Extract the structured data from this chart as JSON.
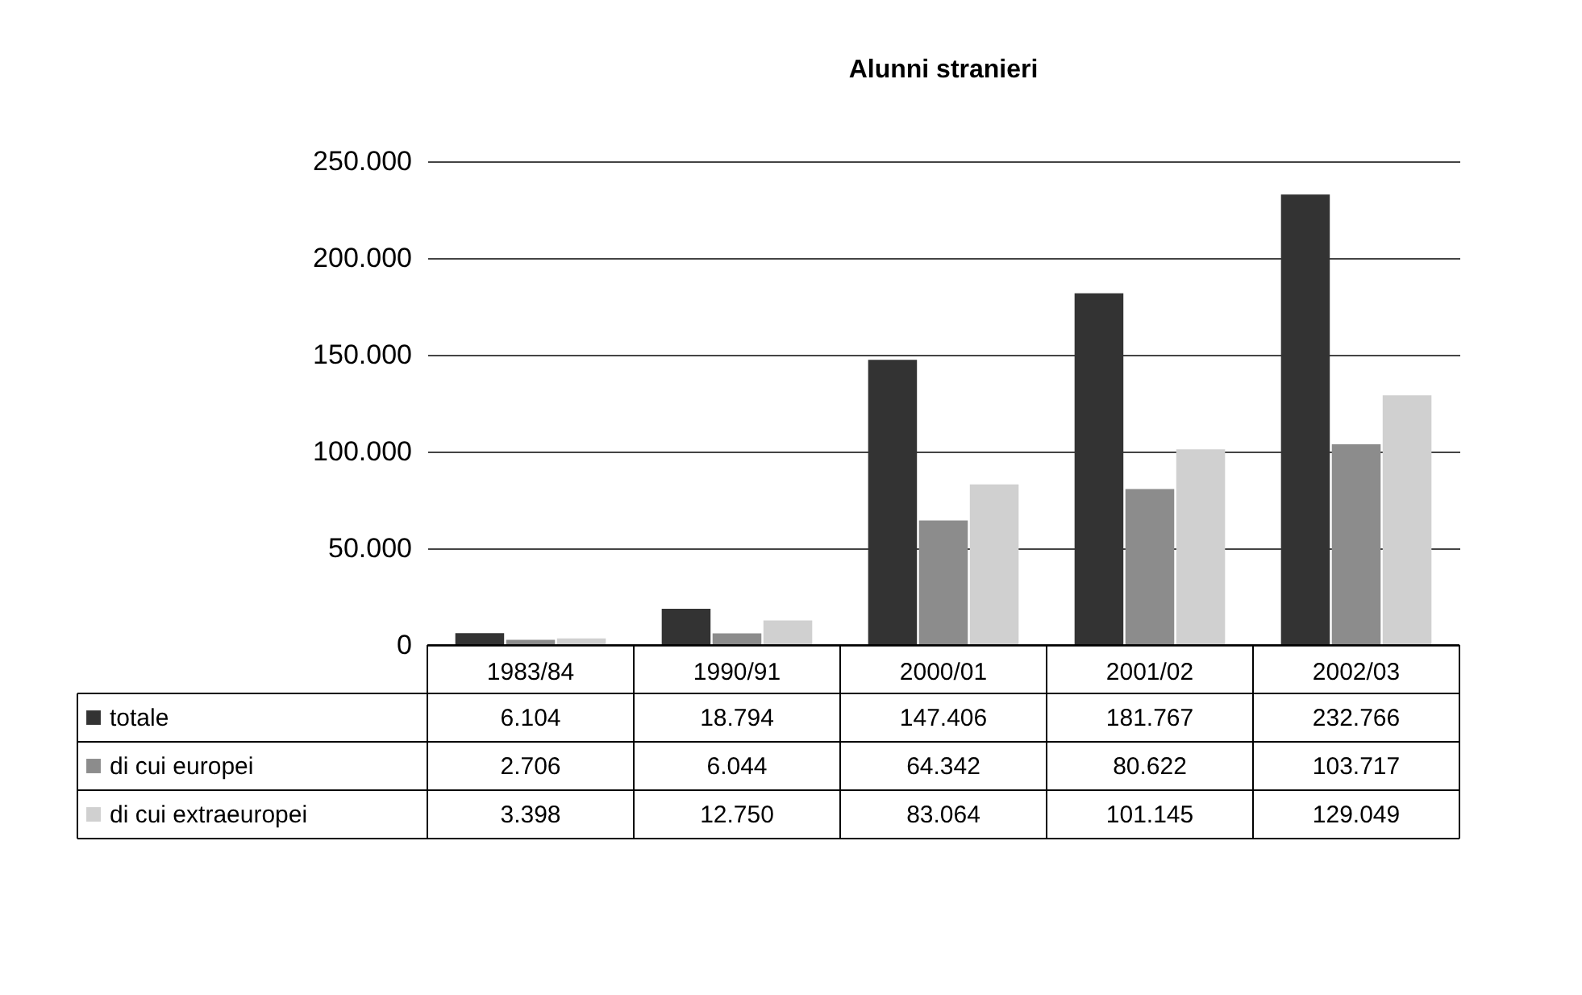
{
  "chart_data": {
    "type": "bar",
    "title": "Alunni stranieri",
    "categories": [
      "1983/84",
      "1990/91",
      "2000/01",
      "2001/02",
      "2002/03"
    ],
    "series": [
      {
        "name": "totale",
        "color": "#333333",
        "values": [
          6104,
          18794,
          147406,
          181767,
          232766
        ],
        "value_labels": [
          "6.104",
          "18.794",
          "147.406",
          "181.767",
          "232.766"
        ]
      },
      {
        "name": "di cui europei",
        "color": "#8c8c8c",
        "values": [
          2706,
          6044,
          64342,
          80622,
          103717
        ],
        "value_labels": [
          "2.706",
          "6.044",
          "64.342",
          "80.622",
          "103.717"
        ]
      },
      {
        "name": "di cui extraeuropei",
        "color": "#d0d0d0",
        "values": [
          3398,
          12750,
          83064,
          101145,
          129049
        ],
        "value_labels": [
          "3.398",
          "12.750",
          "83.064",
          "101.145",
          "129.049"
        ]
      }
    ],
    "ylim": [
      0,
      250000
    ],
    "yticks": [
      {
        "value": 0,
        "label": "0"
      },
      {
        "value": 50000,
        "label": "50.000"
      },
      {
        "value": 100000,
        "label": "100.000"
      },
      {
        "value": 150000,
        "label": "150.000"
      },
      {
        "value": 200000,
        "label": "200.000"
      },
      {
        "value": 250000,
        "label": "250.000"
      }
    ],
    "grid": "y",
    "legend": "bottom"
  }
}
